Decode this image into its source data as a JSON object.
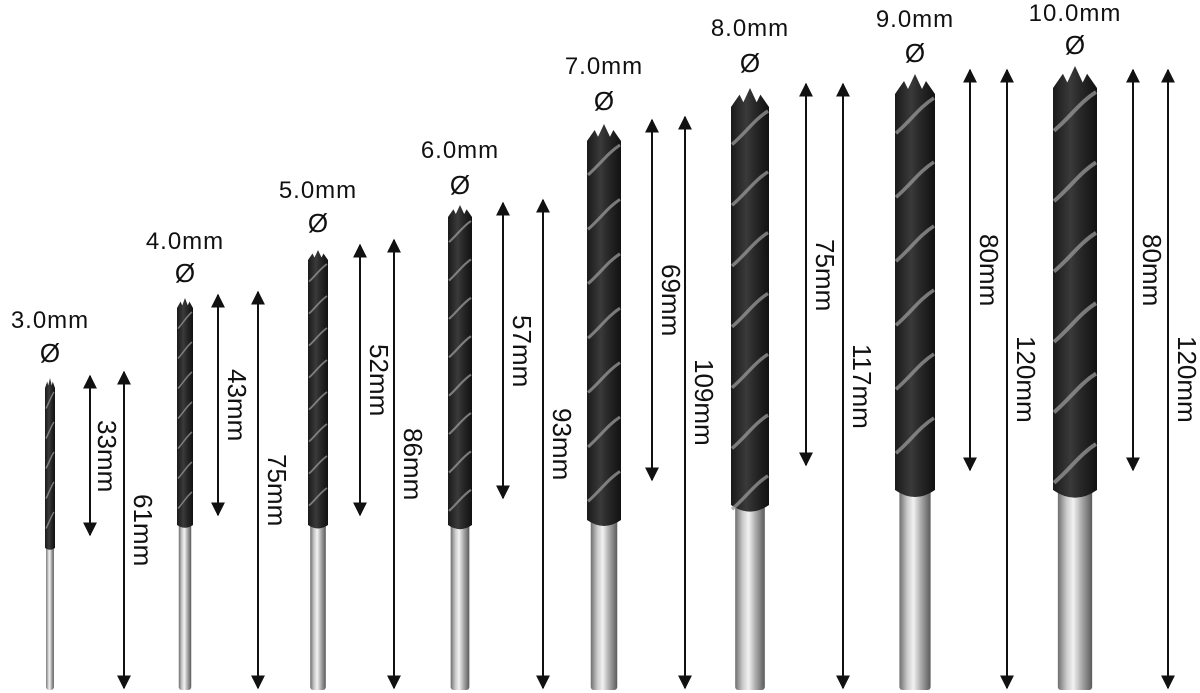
{
  "diameter_symbol": "Ø",
  "bits": [
    {
      "diameter": "3.0mm",
      "flute_length": "33mm",
      "total_length": "61mm"
    },
    {
      "diameter": "4.0mm",
      "flute_length": "43mm",
      "total_length": "75mm"
    },
    {
      "diameter": "5.0mm",
      "flute_length": "52mm",
      "total_length": "86mm"
    },
    {
      "diameter": "6.0mm",
      "flute_length": "57mm",
      "total_length": "93mm"
    },
    {
      "diameter": "7.0mm",
      "flute_length": "69mm",
      "total_length": "109mm"
    },
    {
      "diameter": "8.0mm",
      "flute_length": "75mm",
      "total_length": "117mm"
    },
    {
      "diameter": "9.0mm",
      "flute_length": "80mm",
      "total_length": "120mm"
    },
    {
      "diameter": "10.0mm",
      "flute_length": "80mm",
      "total_length": "120mm"
    }
  ]
}
